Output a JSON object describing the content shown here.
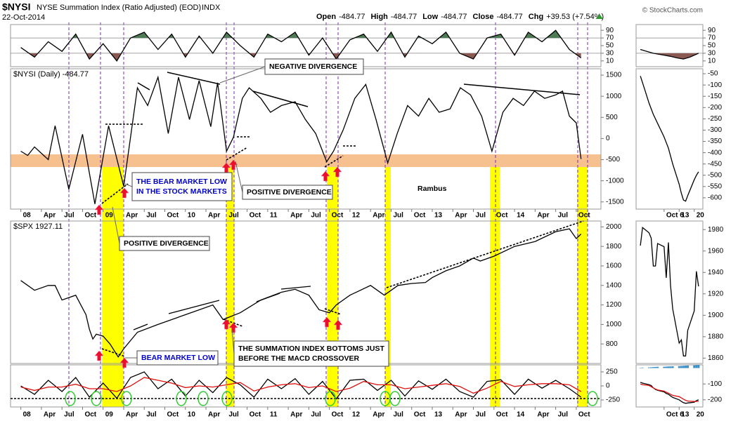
{
  "header": {
    "symbol": "$NYSI",
    "name": "NYSE Summation Index (Ratio Adjusted) (EOD)",
    "exchange": "INDX",
    "date": "22-Oct-2014",
    "quote": [
      {
        "label": "Open",
        "value": "-484.77"
      },
      {
        "label": "High",
        "value": "-484.77"
      },
      {
        "label": "Low",
        "value": "-484.77"
      },
      {
        "label": "Close",
        "value": "-484.77"
      },
      {
        "label": "Chg",
        "value": "+39.53 (+7.54%)"
      }
    ],
    "source": "© StockCharts.com"
  },
  "annotations": [
    {
      "lines": [
        "NEGATIVE DIVERGENCE"
      ]
    },
    {
      "lines": [
        "THE BEAR MARKET LOW",
        "IN THE STOCK MARKETS"
      ]
    },
    {
      "lines": [
        "POSITIVE DIVERGENCE"
      ]
    },
    {
      "lines": [
        "Rambus"
      ]
    },
    {
      "lines": [
        "POSITIVE DIVERGENCE"
      ]
    },
    {
      "lines": [
        "BEAR MARKET LOW"
      ]
    },
    {
      "lines": [
        "THE SUMMATION INDEX BOTTOMS JUST",
        "BEFORE THE MACD CROSSOVER"
      ]
    }
  ],
  "chart_data": [
    {
      "type": "line",
      "x": [
        0,
        2,
        4,
        6,
        8,
        10,
        12,
        14,
        16,
        18,
        20,
        22,
        24,
        26,
        28,
        30,
        32,
        34,
        36,
        38,
        40,
        42,
        44,
        46,
        48,
        50,
        52,
        54,
        56,
        58,
        60,
        62,
        64,
        66,
        68,
        70,
        72,
        74,
        76,
        78,
        80,
        81.7
      ],
      "series": [
        {
          "color": "#000000",
          "values": [
            45,
            20,
            60,
            35,
            80,
            15,
            55,
            10,
            70,
            85,
            40,
            80,
            20,
            75,
            30,
            85,
            50,
            20,
            80,
            60,
            85,
            25,
            70,
            15,
            65,
            80,
            35,
            85,
            20,
            75,
            55,
            85,
            30,
            15,
            70,
            80,
            25,
            85,
            60,
            90,
            40,
            18
          ]
        }
      ],
      "xlim": [
        -1.5,
        84.6
      ],
      "ylim": [
        -5,
        105
      ],
      "yticks": [
        90,
        70,
        50,
        30,
        10
      ],
      "overbought": 70,
      "oversold": 30,
      "fill_above": "#4e7a55",
      "fill_below": "#8a5a52"
    },
    {
      "type": "line",
      "label": "$NYSI (Daily) -484.77",
      "x": [
        0,
        1,
        2,
        3,
        4,
        5,
        7,
        9,
        10.8,
        12.8,
        15,
        17,
        18.5,
        20,
        21.5,
        23,
        24.6,
        26,
        27.7,
        28.7,
        30,
        31,
        32.3,
        33.3,
        35,
        36.4,
        38,
        40,
        41.5,
        43,
        44.6,
        45.6,
        47,
        48.7,
        50.3,
        51.8,
        53.5,
        54.9,
        56.4,
        58,
        59.5,
        61,
        62.6,
        64.1,
        65.6,
        67.2,
        68.7,
        70.3,
        71.8,
        73.3,
        74.9,
        76.4,
        78,
        79,
        80,
        81,
        81.7
      ],
      "series": [
        {
          "color": "#000000",
          "values": [
            -300,
            -400,
            -200,
            -350,
            -500,
            300,
            -1200,
            100,
            -1550,
            300,
            -1130,
            1200,
            780,
            1450,
            120,
            1450,
            450,
            1370,
            280,
            1320,
            -300,
            30,
            950,
            1200,
            950,
            620,
            780,
            870,
            450,
            120,
            -550,
            -300,
            200,
            950,
            1280,
            450,
            -580,
            120,
            780,
            530,
            950,
            620,
            700,
            1200,
            1030,
            530,
            -300,
            620,
            950,
            780,
            1120,
            950,
            1030,
            1120,
            530,
            370,
            -484.77
          ]
        }
      ],
      "xlim": [
        -1.5,
        84.6
      ],
      "ylim": [
        -1670,
        1650
      ],
      "yticks": [
        1500,
        1000,
        500,
        0,
        -500,
        -1000,
        -1500
      ],
      "xticks": [
        {
          "value": 0,
          "label": "08"
        },
        {
          "value": 3,
          "label": "Apr"
        },
        {
          "value": 6,
          "label": "Jul"
        },
        {
          "value": 9,
          "label": "Oct"
        },
        {
          "value": 12,
          "label": "09"
        },
        {
          "value": 15,
          "label": "Apr"
        },
        {
          "value": 18,
          "label": "Jul"
        },
        {
          "value": 21,
          "label": "Oct"
        },
        {
          "value": 24,
          "label": "10"
        },
        {
          "value": 27,
          "label": "Apr"
        },
        {
          "value": 30,
          "label": "Jul"
        },
        {
          "value": 33,
          "label": "Oct"
        },
        {
          "value": 36,
          "label": "11"
        },
        {
          "value": 39,
          "label": "Apr"
        },
        {
          "value": 42,
          "label": "Jul"
        },
        {
          "value": 45,
          "label": "Oct"
        },
        {
          "value": 48,
          "label": "12"
        },
        {
          "value": 51,
          "label": "Apr"
        },
        {
          "value": 54,
          "label": "Jul"
        },
        {
          "value": 57,
          "label": "Oct"
        },
        {
          "value": 60,
          "label": "13"
        },
        {
          "value": 63,
          "label": "Apr"
        },
        {
          "value": 66,
          "label": "Jul"
        },
        {
          "value": 69,
          "label": "Oct"
        },
        {
          "value": 72,
          "label": "14"
        },
        {
          "value": 75,
          "label": "Apr"
        },
        {
          "value": 78,
          "label": "Jul"
        },
        {
          "value": 81,
          "label": "Oct"
        }
      ]
    },
    {
      "type": "line",
      "label": "$SPX 1927.11",
      "x": [
        0,
        2,
        4,
        5,
        6,
        8,
        9.5,
        10,
        10.5,
        11,
        12,
        13,
        14.2,
        15,
        17,
        20,
        24,
        28,
        29.5,
        32,
        35,
        38,
        40,
        42,
        43.5,
        45,
        46,
        48,
        51,
        53,
        55,
        57,
        59,
        60,
        62,
        64,
        66,
        67,
        69,
        72,
        75,
        78,
        80,
        81,
        81.7
      ],
      "series": [
        {
          "color": "#000000",
          "values": [
            1450,
            1350,
            1400,
            1400,
            1250,
            1300,
            1100,
            950,
            850,
            900,
            880,
            800,
            667,
            750,
            920,
            1000,
            1100,
            1200,
            1050,
            1120,
            1250,
            1330,
            1360,
            1300,
            1150,
            1120,
            1200,
            1300,
            1400,
            1300,
            1400,
            1420,
            1430,
            1480,
            1550,
            1600,
            1680,
            1650,
            1700,
            1800,
            1850,
            1950,
            1980,
            1880,
            1927.11
          ]
        }
      ],
      "xlim": [
        -1.5,
        84.6
      ],
      "ylim": [
        600,
        2060
      ],
      "yticks": [
        2000,
        1800,
        1600,
        1400,
        1200,
        1000,
        800
      ]
    },
    {
      "type": "line",
      "x": [
        0,
        2,
        4,
        6,
        8,
        10,
        12,
        14,
        16,
        18,
        20,
        22,
        24,
        26,
        28,
        30,
        32,
        34,
        36,
        38,
        40,
        42,
        44,
        46,
        48,
        50,
        52,
        54,
        56,
        58,
        60,
        62,
        64,
        66,
        68,
        70,
        72,
        74,
        76,
        78,
        80,
        81.7
      ],
      "series": [
        {
          "color": "#000000",
          "values": [
            0,
            -150,
            100,
            -100,
            150,
            -200,
            50,
            -220,
            150,
            250,
            -50,
            120,
            -180,
            100,
            -120,
            150,
            20,
            -200,
            120,
            -50,
            130,
            -150,
            80,
            -230,
            100,
            120,
            -80,
            100,
            -180,
            90,
            -60,
            120,
            -100,
            -200,
            80,
            110,
            -150,
            120,
            -40,
            100,
            -50,
            -200
          ]
        },
        {
          "color": "#e01010",
          "values": [
            -20,
            -80,
            -20,
            -20,
            30,
            -50,
            -50,
            -100,
            0,
            150,
            100,
            50,
            -30,
            0,
            -20,
            20,
            60,
            -90,
            -20,
            20,
            40,
            -30,
            0,
            -100,
            -40,
            80,
            20,
            20,
            -50,
            -20,
            10,
            40,
            -10,
            -130,
            -40,
            80,
            -10,
            20,
            40,
            40,
            20,
            -100
          ]
        }
      ],
      "xlim": [
        -1.5,
        84.6
      ],
      "ylim": [
        -375,
        375
      ],
      "yticks": [
        250,
        0,
        -250
      ],
      "xticks": [
        {
          "value": 0,
          "label": "08"
        },
        {
          "value": 3,
          "label": "Apr"
        },
        {
          "value": 6,
          "label": "Jul"
        },
        {
          "value": 9,
          "label": "Oct"
        },
        {
          "value": 12,
          "label": "09"
        },
        {
          "value": 15,
          "label": "Apr"
        },
        {
          "value": 18,
          "label": "Jul"
        },
        {
          "value": 21,
          "label": "Oct"
        },
        {
          "value": 24,
          "label": "10"
        },
        {
          "value": 27,
          "label": "Apr"
        },
        {
          "value": 30,
          "label": "Jul"
        },
        {
          "value": 33,
          "label": "Oct"
        },
        {
          "value": 36,
          "label": "11"
        },
        {
          "value": 39,
          "label": "Apr"
        },
        {
          "value": 42,
          "label": "Jul"
        },
        {
          "value": 45,
          "label": "Oct"
        },
        {
          "value": 48,
          "label": "12"
        },
        {
          "value": 51,
          "label": "Apr"
        },
        {
          "value": 54,
          "label": "Jul"
        },
        {
          "value": 57,
          "label": "Oct"
        },
        {
          "value": 60,
          "label": "13"
        },
        {
          "value": 63,
          "label": "Apr"
        },
        {
          "value": 66,
          "label": "Jul"
        },
        {
          "value": 69,
          "label": "Oct"
        },
        {
          "value": 72,
          "label": "14"
        },
        {
          "value": 75,
          "label": "Apr"
        },
        {
          "value": 78,
          "label": "Jul"
        },
        {
          "value": 81,
          "label": "Oct"
        }
      ]
    },
    {
      "type": "line",
      "x": [
        -5,
        -2,
        1,
        3,
        6,
        9,
        12,
        15,
        18,
        22
      ],
      "series": [
        {
          "color": "#000000",
          "values": [
            40,
            35,
            30,
            28,
            25,
            22,
            18,
            15,
            20,
            30
          ]
        }
      ],
      "xlim": [
        -7,
        24
      ],
      "ylim": [
        -5,
        105
      ],
      "yticks": [
        90,
        70,
        50,
        30,
        10
      ],
      "overbought": 70,
      "oversold": 30,
      "fill_above": "#4e7a55",
      "fill_below": "#8a5a52"
    },
    {
      "type": "line",
      "x": [
        -5,
        -3,
        -1,
        1,
        3,
        6,
        8,
        10,
        13,
        14,
        15,
        16,
        17,
        20,
        21,
        22
      ],
      "series": [
        {
          "color": "#000000",
          "values": [
            -60,
            -120,
            -180,
            -230,
            -270,
            -330,
            -380,
            -450,
            -540,
            -580,
            -610,
            -615,
            -590,
            -520,
            -500,
            -484.77
          ]
        }
      ],
      "xlim": [
        -7,
        24
      ],
      "ylim": [
        -650,
        -28
      ],
      "yticks": [
        -50,
        -100,
        -150,
        -200,
        -250,
        -300,
        -350,
        -400,
        -450,
        -500,
        -550,
        -600
      ],
      "xticks": [
        {
          "value": 6,
          "label": "Oct 6"
        },
        13,
        20
      ]
    },
    {
      "type": "line",
      "x": [
        -5,
        -4,
        -1,
        0,
        1,
        2,
        3,
        6,
        7,
        8,
        9,
        10,
        13,
        14,
        15,
        16,
        17,
        20,
        21,
        22
      ],
      "series": [
        {
          "color": "#000000",
          "values": [
            1965,
            1982,
            1977,
            1972,
            1946,
            1946,
            1967,
            1964,
            1935,
            1968,
            1928,
            1906,
            1874,
            1877,
            1862,
            1862,
            1886,
            1904,
            1941,
            1927
          ]
        }
      ],
      "xlim": [
        -7,
        24
      ],
      "ylim": [
        1855,
        1988
      ],
      "yticks": [
        1980,
        1960,
        1940,
        1920,
        1900,
        1880,
        1860
      ]
    },
    {
      "type": "line",
      "x": [
        -5,
        -4,
        -1,
        0,
        1,
        2,
        3,
        6,
        7,
        8,
        9,
        10,
        13,
        14,
        15,
        16,
        17,
        20,
        21,
        22
      ],
      "series": [
        {
          "color": "#3a8fc8",
          "style": "bar",
          "values": [
            2,
            3,
            4,
            5,
            6,
            7,
            8,
            8,
            9,
            10,
            10,
            11,
            12,
            13,
            14,
            15,
            16,
            17,
            18,
            20
          ]
        },
        {
          "color": "#000000",
          "values": [
            -90,
            -95,
            -105,
            -110,
            -125,
            -135,
            -140,
            -150,
            -160,
            -165,
            -175,
            -185,
            -200,
            -210,
            -218,
            -222,
            -220,
            -215,
            -205,
            -200
          ]
        },
        {
          "color": "#e01010",
          "values": [
            -100,
            -105,
            -110,
            -118,
            -125,
            -132,
            -138,
            -145,
            -152,
            -158,
            -165,
            -172,
            -180,
            -188,
            -196,
            -203,
            -208,
            -210,
            -210,
            -209
          ]
        }
      ],
      "xlim": [
        -7,
        24
      ],
      "ylim": [
        -245,
        20
      ],
      "yticks": [
        -100,
        -200
      ],
      "xticks": [
        {
          "value": 6,
          "label": "Oct 6"
        },
        13,
        20
      ]
    }
  ]
}
